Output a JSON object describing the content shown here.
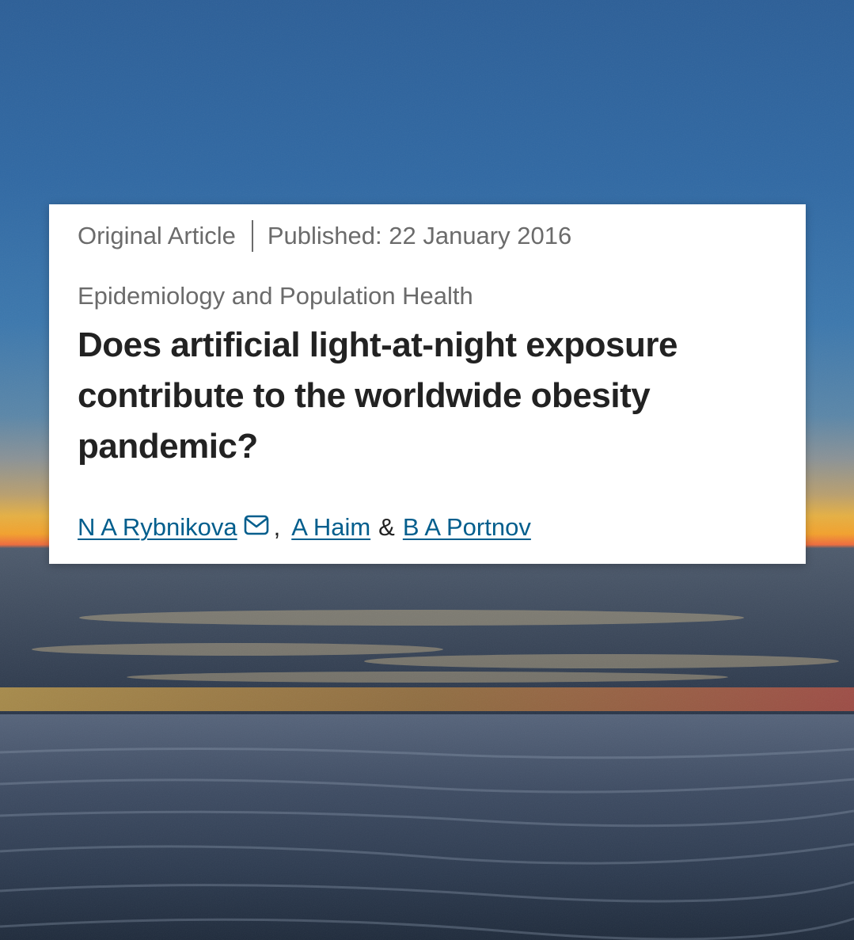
{
  "article": {
    "type": "Original Article",
    "published": "Published: 22 January 2016",
    "category": "Epidemiology and Population Health",
    "title": "Does artificial light-at-night exposure contribute to the worldwide obesity pandemic?",
    "authors": [
      {
        "name": "N A Rybnikova",
        "has_email": true
      },
      {
        "name": "A Haim"
      },
      {
        "name": "B A Portnov"
      }
    ],
    "author_separators": [
      ",",
      "&"
    ]
  },
  "colors": {
    "link": "#025e8d",
    "meta_text": "#6b6b6b",
    "title_text": "#222222"
  },
  "icons": {
    "email": "envelope-icon"
  }
}
